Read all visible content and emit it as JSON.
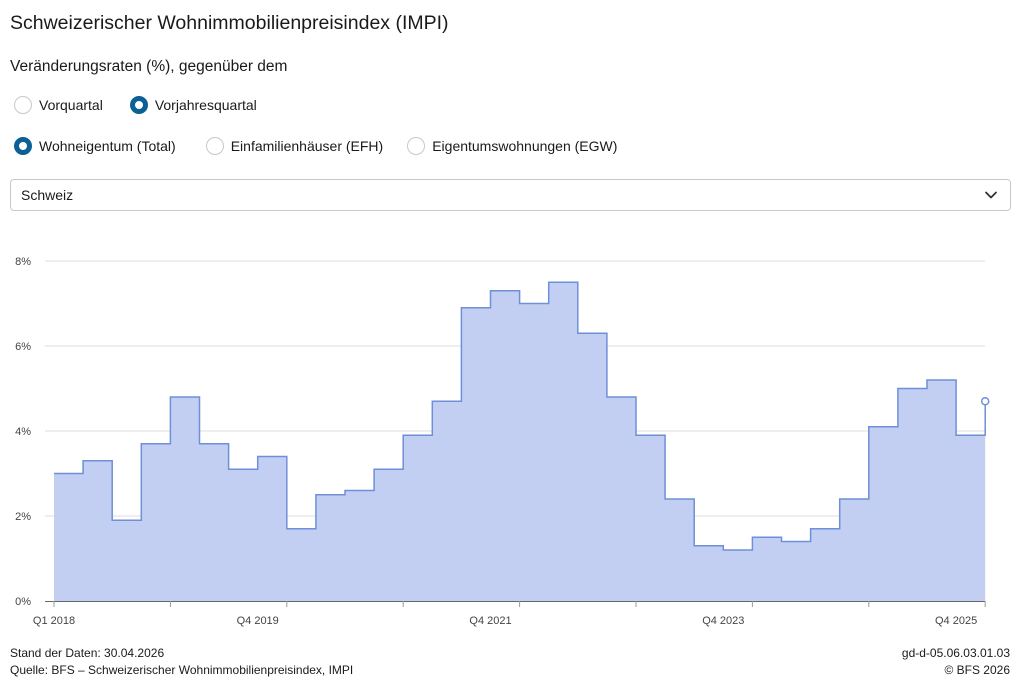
{
  "title": "Schweizerischer Wohnimmobilienpreisindex (IMPI)",
  "subtitle": "Veränderungsraten (%), gegenüber dem",
  "period_options": [
    {
      "label": "Vorquartal",
      "selected": false
    },
    {
      "label": "Vorjahresquartal",
      "selected": true
    }
  ],
  "type_options": [
    {
      "label": "Wohneigentum (Total)",
      "selected": true
    },
    {
      "label": "Einfamilienhäuser (EFH)",
      "selected": false
    },
    {
      "label": "Eigentumswohnungen (EGW)",
      "selected": false
    }
  ],
  "region_select": {
    "value": "Schweiz",
    "icon": "chevron-down-icon"
  },
  "colors": {
    "accent": "#0b6096",
    "fill": "#c3cff2",
    "line": "#6f8fd8"
  },
  "chart_data": {
    "type": "area",
    "step": true,
    "x": [
      "Q1 2018",
      "Q2 2018",
      "Q3 2018",
      "Q4 2018",
      "Q1 2019",
      "Q2 2019",
      "Q3 2019",
      "Q4 2019",
      "Q1 2020",
      "Q2 2020",
      "Q3 2020",
      "Q4 2020",
      "Q1 2021",
      "Q2 2021",
      "Q3 2021",
      "Q4 2021",
      "Q1 2022",
      "Q2 2022",
      "Q3 2022",
      "Q4 2022",
      "Q1 2023",
      "Q2 2023",
      "Q3 2023",
      "Q4 2023",
      "Q1 2024",
      "Q2 2024",
      "Q3 2024",
      "Q4 2024",
      "Q1 2025",
      "Q2 2025",
      "Q3 2025",
      "Q4 2025",
      "Q1 2026"
    ],
    "values": [
      3.0,
      3.3,
      1.9,
      3.7,
      4.8,
      3.7,
      3.1,
      3.4,
      1.7,
      2.5,
      2.6,
      3.1,
      3.9,
      4.7,
      6.9,
      7.3,
      7.0,
      7.5,
      6.3,
      4.8,
      3.9,
      2.4,
      1.3,
      1.2,
      1.5,
      1.4,
      1.7,
      2.4,
      4.1,
      5.0,
      5.2,
      3.9,
      4.7
    ],
    "x_tick_labels": [
      "Q1 2018",
      "Q4 2019",
      "Q4 2021",
      "Q4 2023",
      "Q4 2025"
    ],
    "y_ticks": [
      "0%",
      "2%",
      "4%",
      "6%",
      "8%"
    ],
    "ylim": [
      0,
      8
    ],
    "grid": true,
    "legend": "none"
  },
  "footer": {
    "stand": "Stand der Daten: 30.04.2026",
    "quelle": "Quelle: BFS – Schweizerischer Wohnimmobilienpreisindex, IMPI",
    "code": "gd-d-05.06.03.01.03",
    "copyright": "© BFS 2026"
  }
}
